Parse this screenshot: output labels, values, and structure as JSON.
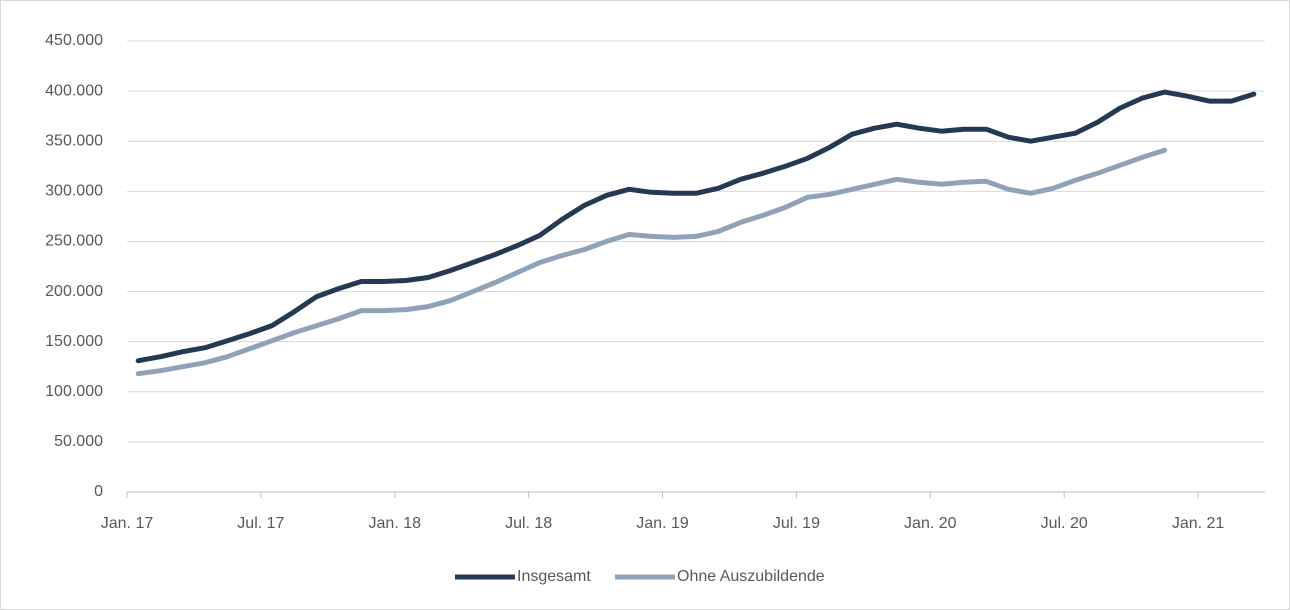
{
  "chart_data": {
    "type": "line",
    "categories": [
      "Jan. 17",
      null,
      null,
      null,
      null,
      null,
      "Jul. 17",
      null,
      null,
      null,
      null,
      null,
      "Jan. 18",
      null,
      null,
      null,
      null,
      null,
      "Jul. 18",
      null,
      null,
      null,
      null,
      null,
      "Jan. 19",
      null,
      null,
      null,
      null,
      null,
      "Jul. 19",
      null,
      null,
      null,
      null,
      null,
      "Jan. 20",
      null,
      null,
      null,
      null,
      null,
      "Jul. 20",
      null,
      null,
      null,
      null,
      null,
      "Jan. 21",
      null,
      null
    ],
    "series": [
      {
        "name": "Insgesamt",
        "color": "#243a53",
        "values": [
          131000,
          135000,
          140000,
          144000,
          151000,
          158000,
          166000,
          180000,
          195000,
          203000,
          210000,
          210000,
          211000,
          214000,
          221000,
          229000,
          237000,
          246000,
          256000,
          272000,
          286000,
          296000,
          302000,
          299000,
          298000,
          298000,
          303000,
          312000,
          318000,
          325000,
          333000,
          344000,
          357000,
          363000,
          367000,
          363000,
          360000,
          362000,
          362000,
          354000,
          350000,
          354000,
          358000,
          369000,
          383000,
          393000,
          399000,
          395000,
          390000,
          390000,
          397000
        ]
      },
      {
        "name": "Ohne Auszubildende",
        "color": "#8fa3b8",
        "values": [
          118000,
          121000,
          125000,
          129000,
          135000,
          143000,
          151000,
          159000,
          166000,
          173000,
          181000,
          181000,
          182000,
          185000,
          191000,
          200000,
          209000,
          219000,
          229000,
          236000,
          242000,
          250000,
          257000,
          255000,
          254000,
          255000,
          260000,
          269000,
          276000,
          284000,
          294000,
          297000,
          302000,
          307000,
          312000,
          309000,
          307000,
          309000,
          310000,
          302000,
          298000,
          303000,
          311000,
          318000,
          326000,
          334000,
          341000,
          null,
          null,
          null,
          null
        ]
      }
    ],
    "ylim": [
      0,
      450000
    ],
    "yticks": [
      0,
      {
        "value": 50000,
        "label": "50.000"
      },
      {
        "value": 100000,
        "label": "100.000"
      },
      {
        "value": 150000,
        "label": "150.000"
      },
      {
        "value": 200000,
        "label": "200.000"
      },
      {
        "value": 250000,
        "label": "250.000"
      },
      {
        "value": 300000,
        "label": "300.000"
      },
      {
        "value": 350000,
        "label": "350.000"
      },
      {
        "value": 400000,
        "label": "400.000"
      },
      {
        "value": 450000,
        "label": "450.000"
      }
    ],
    "grid": true,
    "legend": "bottom"
  }
}
